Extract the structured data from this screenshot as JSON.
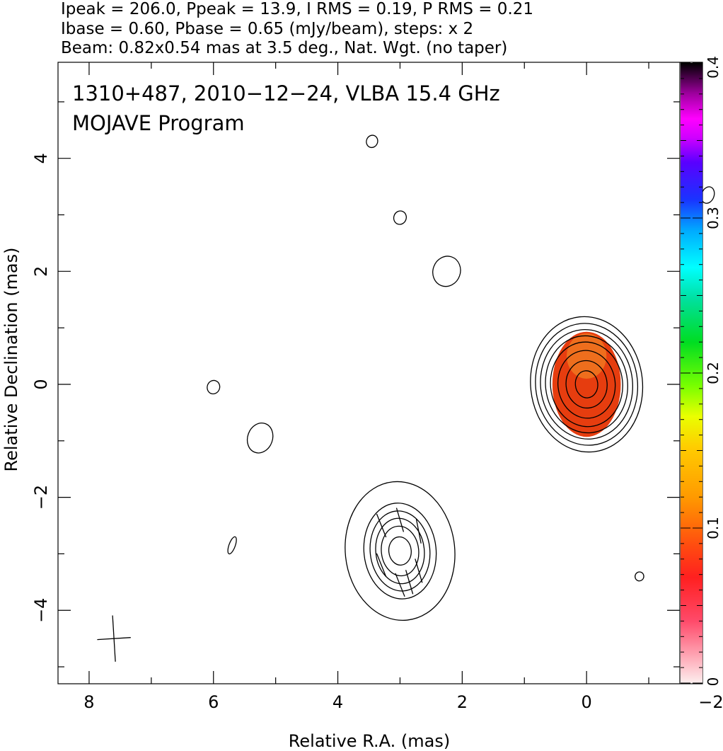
{
  "header": {
    "line1": "Ipeak = 206.0, Ppeak = 13.9, I RMS = 0.19, P RMS = 0.21",
    "line2": "Ibase = 0.60, Pbase = 0.65 (mJy/beam), steps: x 2",
    "line3": "Beam: 0.82x0.54 mas at 3.5 deg., Nat. Wgt. (no taper)"
  },
  "annotation": {
    "line1": "1310+487, 2010−12−24, VLBA 15.4 GHz",
    "line2": "MOJAVE Program"
  },
  "chart_data": {
    "type": "contour",
    "xlabel": "Relative R.A. (mas)",
    "ylabel": "Relative Declination (mas)",
    "xlim": [
      8.5,
      -1.5
    ],
    "ylim": [
      -5.3,
      5.7
    ],
    "x_ticks": [
      8,
      6,
      4,
      2,
      0,
      -2
    ],
    "x_tick_labels": [
      "8",
      "6",
      "4",
      "2",
      "0",
      "−2"
    ],
    "y_ticks": [
      -4,
      -2,
      0,
      2,
      4
    ],
    "y_tick_labels": [
      "−4",
      "−2",
      "0",
      "2",
      "4"
    ],
    "colorbar": {
      "range": [
        0,
        0.4
      ],
      "ticks": [
        0,
        0.1,
        0.2,
        0.3,
        0.4
      ],
      "tick_labels": [
        "0",
        "0.1",
        "0.2",
        "0.3",
        "0.4"
      ]
    },
    "components": [
      {
        "name": "core",
        "x": 0.0,
        "y": 0.0,
        "contour_semi_axes": [
          [
            0.9,
            1.2
          ],
          [
            0.82,
            1.08
          ],
          [
            0.74,
            0.97
          ],
          [
            0.66,
            0.86
          ],
          [
            0.58,
            0.75
          ],
          [
            0.46,
            0.6
          ],
          [
            0.33,
            0.42
          ],
          [
            0.18,
            0.24
          ]
        ],
        "color_fill_semi_axes": [
          0.55,
          0.93
        ],
        "fill_color": "#e63d0f"
      },
      {
        "name": "jet-knot",
        "x": 3.0,
        "y": -2.95,
        "contour_semi_axes": [
          [
            0.88,
            1.23
          ],
          [
            0.58,
            0.85
          ],
          [
            0.48,
            0.71
          ],
          [
            0.39,
            0.58
          ],
          [
            0.3,
            0.44
          ],
          [
            0.18,
            0.25
          ]
        ]
      }
    ],
    "noise_contours": [
      {
        "x": 3.45,
        "y": 4.3
      },
      {
        "x": 3.0,
        "y": 2.95
      },
      {
        "x": 2.25,
        "y": 2.0
      },
      {
        "x": -1.95,
        "y": 3.35
      },
      {
        "x": 6.0,
        "y": -0.05
      },
      {
        "x": 5.25,
        "y": -0.95
      },
      {
        "x": 5.7,
        "y": -2.85
      },
      {
        "x": -0.85,
        "y": -3.4
      }
    ],
    "polarization_vectors": [
      {
        "x": 3.3,
        "y": -2.5,
        "angle_deg": 20
      },
      {
        "x": 3.0,
        "y": -2.4,
        "angle_deg": 15
      },
      {
        "x": 2.7,
        "y": -2.6,
        "angle_deg": 10
      },
      {
        "x": 3.3,
        "y": -3.2,
        "angle_deg": 20
      },
      {
        "x": 2.7,
        "y": -3.3,
        "angle_deg": 15
      },
      {
        "x": 3.0,
        "y": -3.55,
        "angle_deg": 20
      },
      {
        "x": 2.85,
        "y": -3.5,
        "angle_deg": 15
      }
    ],
    "beam": {
      "x": 7.6,
      "y": -4.5,
      "major_mas": 0.82,
      "minor_mas": 0.54,
      "pa_deg": 3.5
    }
  }
}
